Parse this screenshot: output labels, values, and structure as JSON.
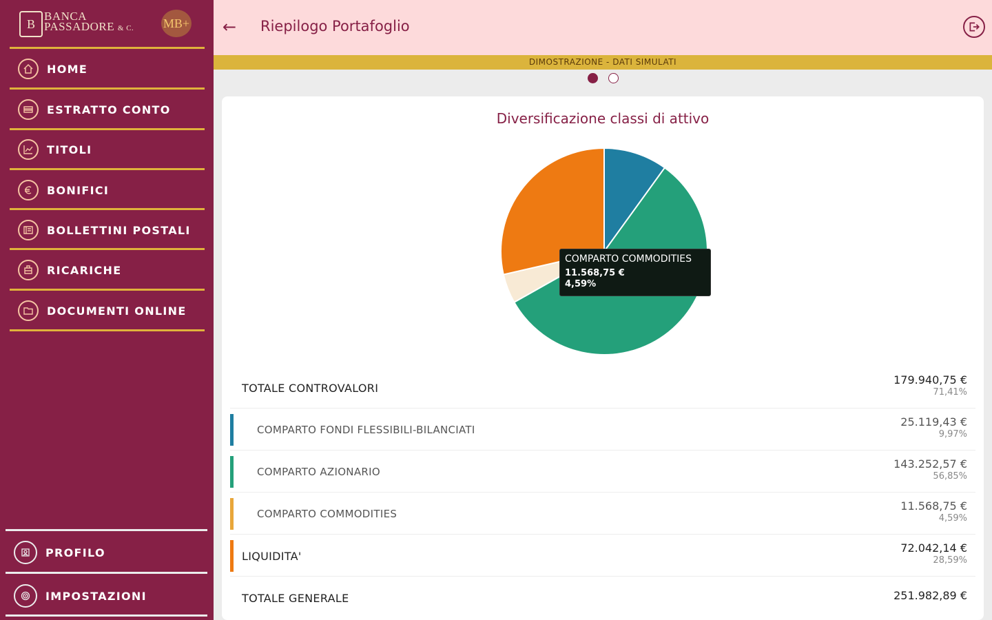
{
  "brand": {
    "line1": "BANCA",
    "line2": "PASSADORE",
    "line2_suffix": "& C.",
    "badge": "MB+"
  },
  "nav": {
    "items": [
      {
        "label": "HOME",
        "icon": "home-icon"
      },
      {
        "label": "ESTRATTO CONTO",
        "icon": "statement-icon"
      },
      {
        "label": "TITOLI",
        "icon": "chart-line-icon"
      },
      {
        "label": "BONIFICI",
        "icon": "euro-icon"
      },
      {
        "label": "BOLLETTINI POSTALI",
        "icon": "postal-icon"
      },
      {
        "label": "RICARICHE",
        "icon": "topup-icon"
      },
      {
        "label": "DOCUMENTI ONLINE",
        "icon": "folder-icon"
      }
    ],
    "bottom": [
      {
        "label": "PROFILO",
        "icon": "profile-icon"
      },
      {
        "label": "IMPOSTAZIONI",
        "icon": "settings-icon"
      }
    ]
  },
  "header": {
    "title": "Riepilogo Portafoglio",
    "back_icon": "arrow-left-icon",
    "logout_icon": "logout-icon"
  },
  "banner": "DIMOSTRAZIONE - DATI SIMULATI",
  "pager": {
    "count": 2,
    "active": 1
  },
  "colors": {
    "brand": "#862046",
    "accent": "#e0b23b",
    "fondi": "#1f7ea1",
    "azionario": "#24a07a",
    "commodities": "#f8ead5",
    "liquidita": "#ee7a12"
  },
  "chart_data": {
    "type": "pie",
    "title": "Diversificazione classi di attivo",
    "slices": [
      {
        "label": "COMPARTO FONDI FLESSIBILI-BILANCIATI",
        "value": 25119.43,
        "percent": 9.97,
        "color": "#1f7ea1"
      },
      {
        "label": "COMPARTO AZIONARIO",
        "value": 143252.57,
        "percent": 56.85,
        "color": "#24a07a"
      },
      {
        "label": "COMPARTO COMMODITIES",
        "value": 11568.75,
        "percent": 4.59,
        "color": "#f8ead5"
      },
      {
        "label": "LIQUIDITA'",
        "value": 72042.14,
        "percent": 28.59,
        "color": "#ee7a12"
      }
    ],
    "tooltip": {
      "name": "COMPARTO COMMODITIES",
      "value": "11.568,75 €",
      "percent": "4,59%"
    }
  },
  "summary": {
    "totale_controvalori": {
      "label": "TOTALE CONTROVALORI",
      "amount": "179.940,75 €",
      "percent": "71,41%"
    },
    "rows": [
      {
        "label": "COMPARTO FONDI FLESSIBILI-BILANCIATI",
        "amount": "25.119,43 €",
        "percent": "9,97%"
      },
      {
        "label": "COMPARTO AZIONARIO",
        "amount": "143.252,57 €",
        "percent": "56,85%"
      },
      {
        "label": "COMPARTO COMMODITIES",
        "amount": "11.568,75 €",
        "percent": "4,59%"
      }
    ],
    "liquidita": {
      "label": "LIQUIDITA'",
      "amount": "72.042,14 €",
      "percent": "28,59%"
    },
    "totale_generale": {
      "label": "TOTALE GENERALE",
      "amount": "251.982,89 €"
    }
  }
}
